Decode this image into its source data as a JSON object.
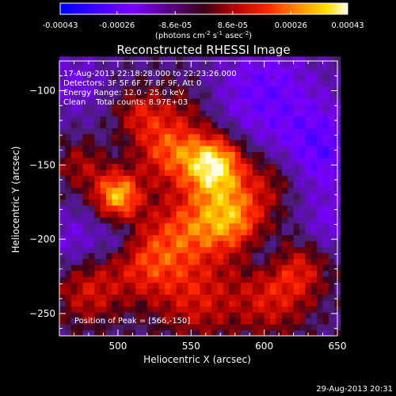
{
  "chart_data": {
    "type": "heatmap",
    "title": "Reconstructed RHESSI Image",
    "xlabel": "Heliocentric X (arcsec)",
    "ylabel": "Heliocentric Y (arcsec)",
    "xlim": [
      460,
      650
    ],
    "ylim": [
      -265,
      -80
    ],
    "x_ticks": [
      500,
      550,
      600,
      650
    ],
    "y_ticks": [
      -100,
      -150,
      -200,
      -250
    ],
    "colorbar": {
      "ticks": [
        "-0.00043",
        "-0.00026",
        "-8.6e-05",
        "8.6e-05",
        "0.00026",
        "0.00043"
      ],
      "tick_values": [
        -0.00043,
        -0.00026,
        -8.6e-05,
        8.6e-05,
        0.00026,
        0.00043
      ],
      "range": [
        -0.00043,
        0.00043
      ],
      "unit_text": "(photons cm",
      "unit_exp1": "-2",
      "unit_mid": " s",
      "unit_exp2": "-1",
      "unit_mid2": " asec",
      "unit_exp3": "-2",
      "unit_end": ")"
    },
    "annotations": [
      "17-Aug-2013 22:18:28.000 to 22:23:26.000",
      "Detectors: 3F 5F 6F 7F 8F 9F, Att 0",
      "Energy Range: 12.0 - 25.0 keV",
      "Clean    Total counts: 8.97E+03"
    ],
    "peak_text": "Position of Peak = [566,-150]",
    "peak": [
      566,
      -150
    ],
    "peak_value": 0.00043,
    "sources": [
      {
        "x": 566,
        "y": -150,
        "amp": 0.00045,
        "sigma": 14
      },
      {
        "x": 500,
        "y": -170,
        "amp": 0.00038,
        "sigma": 11
      },
      {
        "x": 535,
        "y": -140,
        "amp": 0.00026,
        "sigma": 16
      },
      {
        "x": 578,
        "y": -185,
        "amp": 0.00032,
        "sigma": 16
      },
      {
        "x": 548,
        "y": -192,
        "amp": 0.00022,
        "sigma": 18
      },
      {
        "x": 520,
        "y": -215,
        "amp": 0.00022,
        "sigma": 18
      },
      {
        "x": 555,
        "y": -240,
        "amp": 0.00018,
        "sigma": 20
      },
      {
        "x": 605,
        "y": -240,
        "amp": 0.00018,
        "sigma": 18
      },
      {
        "x": 625,
        "y": -220,
        "amp": 0.00016,
        "sigma": 14
      },
      {
        "x": 480,
        "y": -235,
        "amp": 0.00018,
        "sigma": 16
      },
      {
        "x": 475,
        "y": -150,
        "amp": 0.00014,
        "sigma": 12
      },
      {
        "x": 515,
        "y": -115,
        "amp": 0.00016,
        "sigma": 12
      },
      {
        "x": 605,
        "y": -160,
        "amp": 0.00014,
        "sigma": 14
      },
      {
        "x": 545,
        "y": -110,
        "amp": 8e-05,
        "sigma": 15
      },
      {
        "x": 600,
        "y": -100,
        "amp": -0.00018,
        "sigma": 25
      },
      {
        "x": 640,
        "y": -140,
        "amp": -0.0002,
        "sigma": 22
      },
      {
        "x": 470,
        "y": -95,
        "amp": -0.00012,
        "sigma": 15
      },
      {
        "x": 470,
        "y": -200,
        "amp": -0.00012,
        "sigma": 14
      },
      {
        "x": 500,
        "y": -200,
        "amp": -0.0001,
        "sigma": 10
      },
      {
        "x": 645,
        "y": -190,
        "amp": -0.00012,
        "sigma": 12
      },
      {
        "x": 600,
        "y": -210,
        "amp": -8e-05,
        "sigma": 10
      }
    ],
    "base_level": -6e-05,
    "grid": false
  },
  "timestamp": "29-Aug-2013 20:31"
}
